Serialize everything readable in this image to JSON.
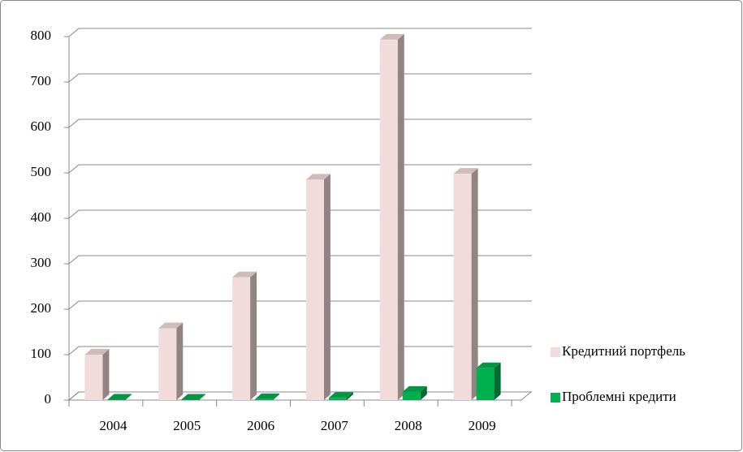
{
  "chart_data": {
    "type": "bar3d",
    "categories": [
      "2004",
      "2005",
      "2006",
      "2007",
      "2008",
      "2009"
    ],
    "series": [
      {
        "name": "Кредитний портфель",
        "color": "#f2dcdb",
        "values": [
          100,
          158,
          270,
          485,
          793,
          498
        ]
      },
      {
        "name": "Проблемні кредити",
        "color": "#00b050",
        "values": [
          1,
          1,
          2,
          5,
          18,
          70
        ]
      }
    ],
    "ylim": [
      0,
      800
    ],
    "yticks": [
      0,
      100,
      200,
      300,
      400,
      500,
      600,
      700,
      800
    ],
    "grid": true
  }
}
